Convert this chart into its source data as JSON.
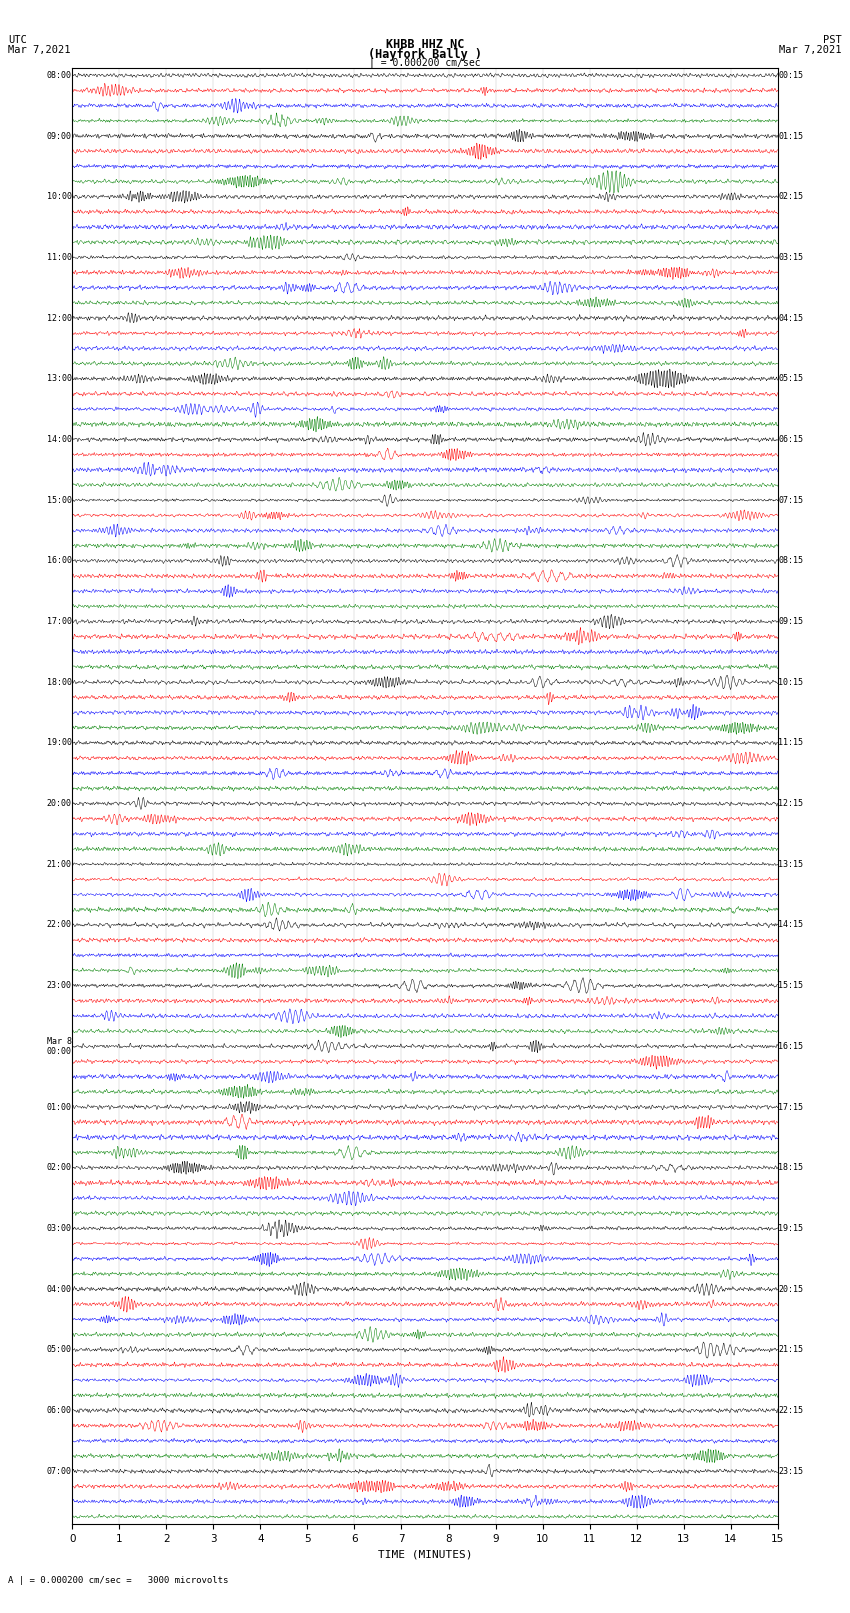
{
  "title_line1": "KHBB HHZ NC",
  "title_line2": "(Hayfork Bally )",
  "scale_label": "| = 0.000200 cm/sec",
  "utc_label": "UTC\nMar 7,2021",
  "pst_label": "PST\nMar 7,2021",
  "bottom_label": "A | = 0.000200 cm/sec =   3000 microvolts",
  "xlabel": "TIME (MINUTES)",
  "xticks": [
    0,
    1,
    2,
    3,
    4,
    5,
    6,
    7,
    8,
    9,
    10,
    11,
    12,
    13,
    14,
    15
  ],
  "left_times_utc": [
    "08:00",
    "09:00",
    "10:00",
    "11:00",
    "12:00",
    "13:00",
    "14:00",
    "15:00",
    "16:00",
    "17:00",
    "18:00",
    "19:00",
    "20:00",
    "21:00",
    "22:00",
    "23:00",
    "Mar 8\n00:00",
    "01:00",
    "02:00",
    "03:00",
    "04:00",
    "05:00",
    "06:00",
    "07:00"
  ],
  "right_times_pst": [
    "00:15",
    "01:15",
    "02:15",
    "03:15",
    "04:15",
    "05:15",
    "06:15",
    "07:15",
    "08:15",
    "09:15",
    "10:15",
    "11:15",
    "12:15",
    "13:15",
    "14:15",
    "15:15",
    "16:15",
    "17:15",
    "18:15",
    "19:15",
    "20:15",
    "21:15",
    "22:15",
    "23:15"
  ],
  "num_rows": 24,
  "traces_per_row": 4,
  "colors": [
    "black",
    "red",
    "blue",
    "green"
  ],
  "bg_color": "white",
  "fig_width": 8.5,
  "fig_height": 16.13,
  "dpi": 100
}
